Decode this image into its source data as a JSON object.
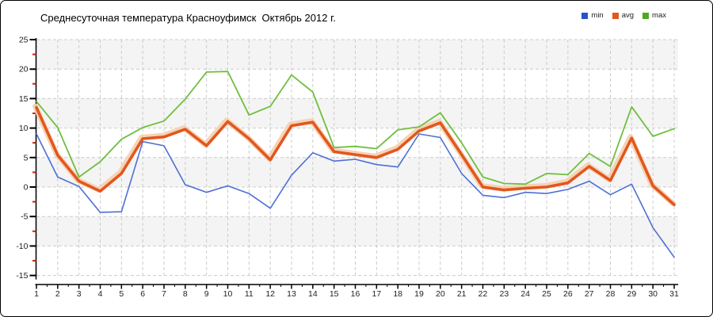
{
  "title": "Среднесуточная температура Красноуфимск  Октябрь 2012 г.",
  "legend": {
    "items": [
      {
        "label": "min",
        "color": "#2a52cc"
      },
      {
        "label": "avg",
        "color": "#e0581f"
      },
      {
        "label": "max",
        "color": "#4fa81e"
      }
    ]
  },
  "chart_data": {
    "type": "line",
    "title": "Среднесуточная температура Красноуфимск  Октябрь 2012 г.",
    "xlabel": "",
    "ylabel": "",
    "x": [
      1,
      2,
      3,
      4,
      5,
      6,
      7,
      8,
      9,
      10,
      11,
      12,
      13,
      14,
      15,
      16,
      17,
      18,
      19,
      20,
      21,
      22,
      23,
      24,
      25,
      26,
      27,
      28,
      29,
      30,
      31
    ],
    "x_tick_labels": [
      "1",
      "2",
      "3",
      "4",
      "5",
      "6",
      "7",
      "8",
      "9",
      "10",
      "11",
      "12",
      "13",
      "14",
      "15",
      "16",
      "17",
      "18",
      "19",
      "20",
      "21",
      "22",
      "23",
      "24",
      "25",
      "26",
      "27",
      "28",
      "29",
      "30",
      "31"
    ],
    "series": [
      {
        "name": "min",
        "color": "#4d6fd6",
        "width": 1.6,
        "values": [
          9.0,
          1.7,
          0.1,
          -4.3,
          -4.2,
          7.7,
          7.0,
          0.4,
          -0.9,
          0.2,
          -1.1,
          -3.6,
          2.0,
          5.8,
          4.4,
          4.7,
          3.8,
          3.4,
          9.0,
          8.4,
          2.3,
          -1.4,
          -1.8,
          -0.9,
          -1.1,
          -0.4,
          1.0,
          -1.3,
          0.5,
          -6.9,
          -11.9
        ]
      },
      {
        "name": "avg",
        "color": "#e2571e",
        "width": 3.6,
        "halo": "#f5cfae",
        "values": [
          13.5,
          5.4,
          1.0,
          -0.7,
          2.3,
          8.2,
          8.5,
          9.8,
          7.0,
          11.1,
          8.2,
          4.6,
          10.4,
          11.0,
          6.0,
          5.5,
          5.0,
          6.4,
          9.5,
          10.9,
          5.5,
          0.0,
          -0.5,
          -0.2,
          0.0,
          0.7,
          3.5,
          1.1,
          8.3,
          0.2,
          -3.0
        ]
      },
      {
        "name": "max",
        "color": "#6fbf3e",
        "width": 1.8,
        "values": [
          14.5,
          10.1,
          1.7,
          4.3,
          8.1,
          10.1,
          11.2,
          14.9,
          19.5,
          19.6,
          12.2,
          13.7,
          19.0,
          16.1,
          6.7,
          6.9,
          6.5,
          9.7,
          10.2,
          12.6,
          7.5,
          1.7,
          0.6,
          0.5,
          2.3,
          2.1,
          5.7,
          3.5,
          13.6,
          8.6,
          9.9
        ]
      }
    ],
    "ylim": [
      -15,
      25
    ],
    "y_ticks": [
      25,
      20,
      15,
      10,
      5,
      0,
      -5,
      -10,
      -15
    ],
    "y_minor_step": 2.5,
    "y_minor_tick_color": "#cc2200",
    "grid": "dashed",
    "grid_color": "#cccccc",
    "band_colors": [
      "#f4f4f4",
      "#ffffff"
    ],
    "axis_color": "#000000",
    "tick_label_color": "#222222",
    "legend_position": "top-right"
  }
}
